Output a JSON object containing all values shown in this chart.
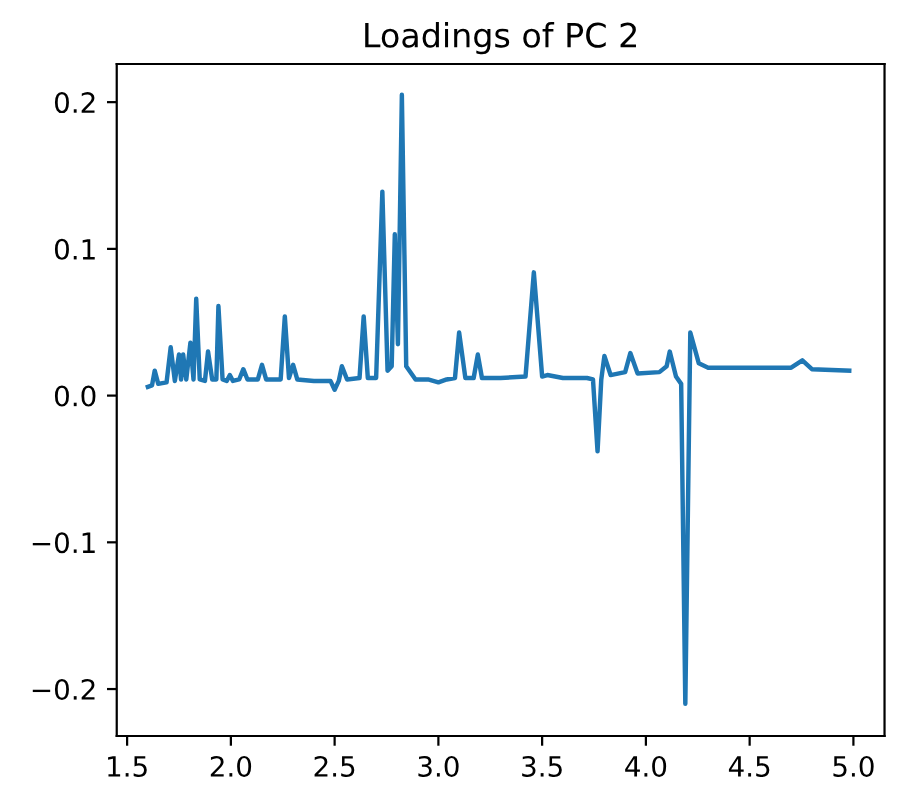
{
  "chart_data": {
    "type": "line",
    "title": "Loadings of PC 2",
    "x": [
      1.6,
      1.62,
      1.633,
      1.65,
      1.69,
      1.71,
      1.73,
      1.75,
      1.76,
      1.77,
      1.785,
      1.805,
      1.82,
      1.833,
      1.85,
      1.875,
      1.89,
      1.91,
      1.93,
      1.94,
      1.96,
      1.98,
      1.995,
      2.01,
      2.04,
      2.06,
      2.08,
      2.13,
      2.15,
      2.17,
      2.24,
      2.26,
      2.28,
      2.3,
      2.32,
      2.4,
      2.48,
      2.5,
      2.52,
      2.535,
      2.56,
      2.62,
      2.64,
      2.66,
      2.7,
      2.73,
      2.755,
      2.775,
      2.79,
      2.805,
      2.824,
      2.845,
      2.89,
      2.95,
      3.0,
      3.04,
      3.08,
      3.1,
      3.13,
      3.17,
      3.19,
      3.21,
      3.3,
      3.42,
      3.46,
      3.5,
      3.525,
      3.6,
      3.716,
      3.745,
      3.767,
      3.785,
      3.8,
      3.83,
      3.9,
      3.925,
      3.96,
      4.065,
      4.1,
      4.115,
      4.145,
      4.17,
      4.19,
      4.214,
      4.255,
      4.3,
      4.7,
      4.754,
      4.8,
      4.98
    ],
    "series": [
      {
        "color": "#1f77b4",
        "values": [
          0.006,
          0.007,
          0.017,
          0.008,
          0.009,
          0.033,
          0.01,
          0.028,
          0.011,
          0.028,
          0.011,
          0.036,
          0.011,
          0.066,
          0.011,
          0.01,
          0.03,
          0.011,
          0.011,
          0.061,
          0.011,
          0.01,
          0.014,
          0.01,
          0.011,
          0.018,
          0.011,
          0.011,
          0.021,
          0.011,
          0.011,
          0.054,
          0.012,
          0.021,
          0.011,
          0.01,
          0.01,
          0.004,
          0.01,
          0.02,
          0.011,
          0.012,
          0.054,
          0.012,
          0.012,
          0.139,
          0.017,
          0.02,
          0.11,
          0.035,
          0.205,
          0.02,
          0.011,
          0.011,
          0.009,
          0.011,
          0.012,
          0.043,
          0.012,
          0.012,
          0.028,
          0.012,
          0.012,
          0.013,
          0.084,
          0.013,
          0.014,
          0.012,
          0.012,
          0.011,
          -0.038,
          0.011,
          0.027,
          0.014,
          0.016,
          0.029,
          0.015,
          0.016,
          0.02,
          0.03,
          0.013,
          0.008,
          -0.21,
          0.043,
          0.022,
          0.019,
          0.019,
          0.024,
          0.018,
          0.017
        ]
      }
    ],
    "xlim": [
      1.45,
      5.15
    ],
    "ylim": [
      -0.232,
      0.226
    ],
    "xticks": [
      1.5,
      {
        "value": 2,
        "label": "2.0"
      },
      2.5,
      {
        "value": 3,
        "label": "3.0"
      },
      3.5,
      {
        "value": 4,
        "label": "4.0"
      },
      4.5,
      {
        "value": 5,
        "label": "5.0"
      }
    ],
    "yticks": [
      {
        "value": -0.2,
        "label": "−0.2"
      },
      {
        "value": -0.1,
        "label": "−0.1"
      },
      {
        "value": 0,
        "label": "0.0"
      },
      0.1,
      0.2
    ],
    "grid": false,
    "legend": false
  }
}
